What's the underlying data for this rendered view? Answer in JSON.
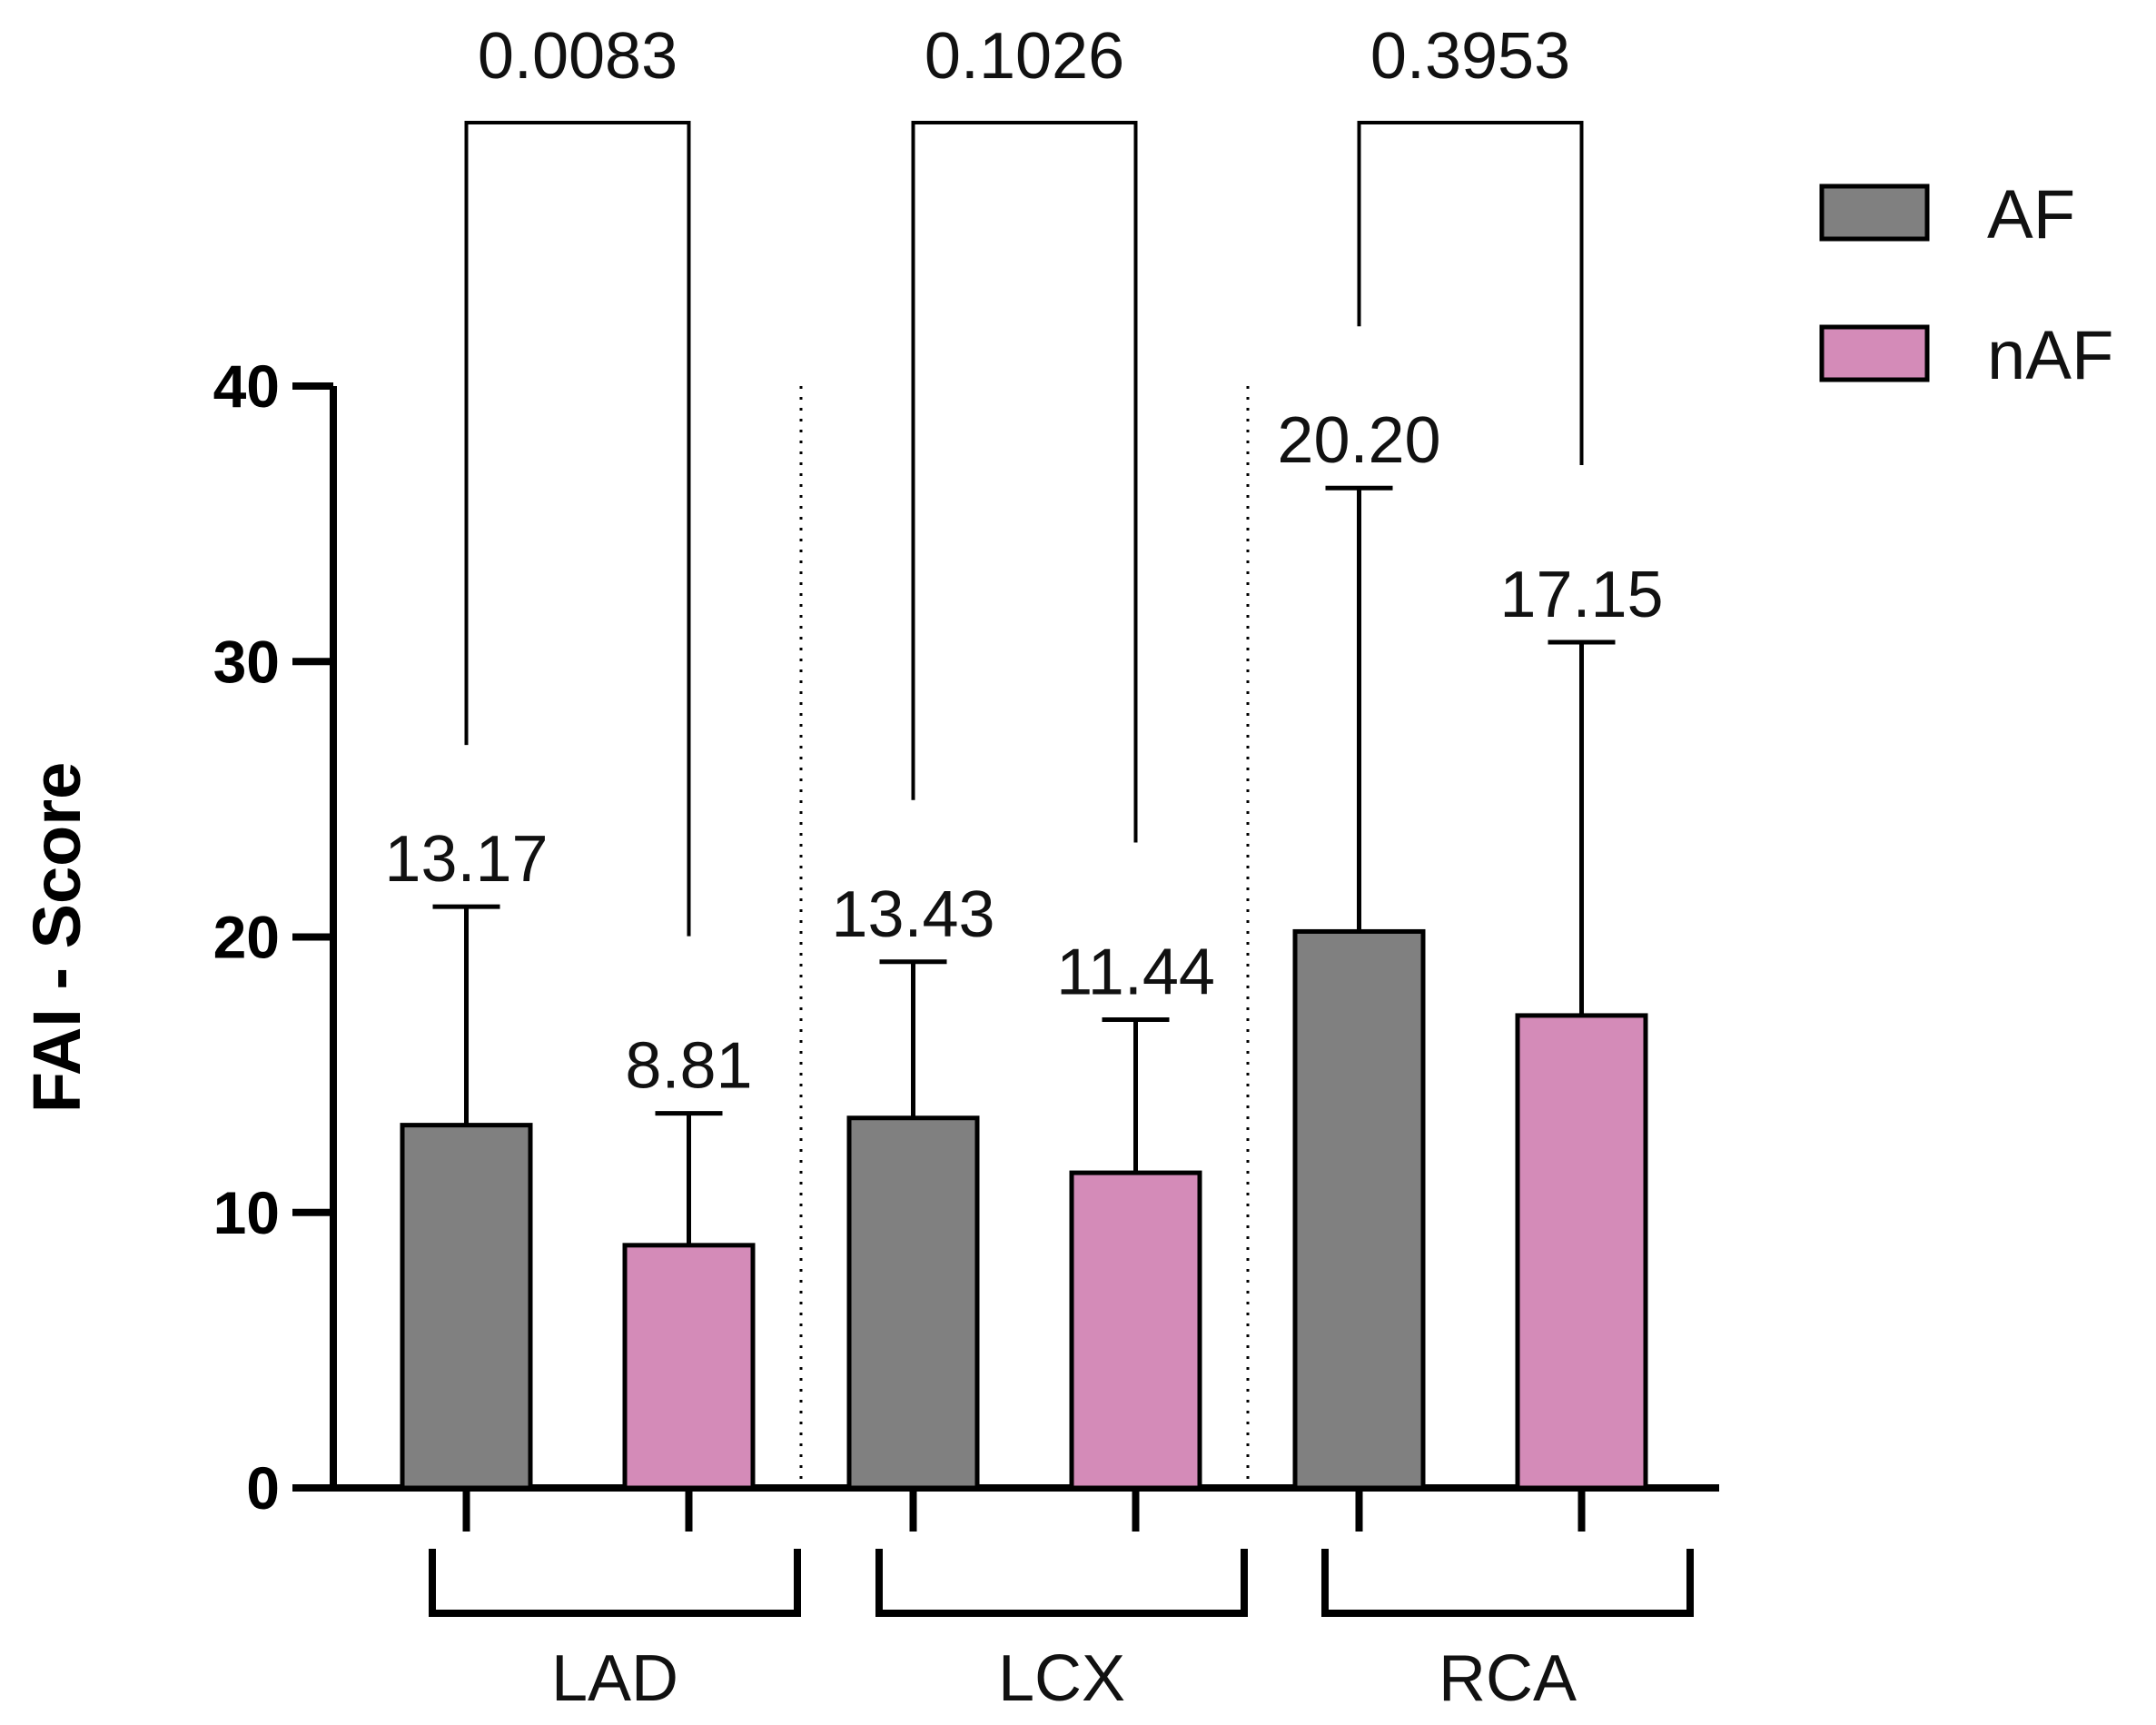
{
  "chart_data": {
    "type": "bar",
    "title": "",
    "xlabel": "",
    "ylabel": "FAI - Score",
    "ylim": [
      0,
      40
    ],
    "yticks": [
      "0",
      "10",
      "20",
      "30",
      "40"
    ],
    "groups": [
      "LAD",
      "LCX",
      "RCA"
    ],
    "series": [
      {
        "name": "AF",
        "color": "#808080",
        "values": [
          13.17,
          13.43,
          20.2
        ],
        "value_labels": [
          "13.17",
          "13.43",
          "20.20"
        ],
        "error_upper": [
          21.1,
          19.1,
          36.3
        ]
      },
      {
        "name": "nAF",
        "color": "#d48bb8",
        "values": [
          8.81,
          11.44,
          17.15
        ],
        "value_labels": [
          "8.81",
          "11.44",
          "17.15"
        ],
        "error_upper": [
          13.6,
          17.0,
          30.7
        ]
      }
    ],
    "p_values": [
      {
        "group": "LAD",
        "label": "0.0083",
        "color": "#ff0000"
      },
      {
        "group": "LCX",
        "label": "0.1026",
        "color": "#111111"
      },
      {
        "group": "RCA",
        "label": "0.3953",
        "color": "#111111"
      }
    ],
    "legend": {
      "position": "top-right",
      "entries": [
        "AF",
        "nAF"
      ]
    }
  }
}
